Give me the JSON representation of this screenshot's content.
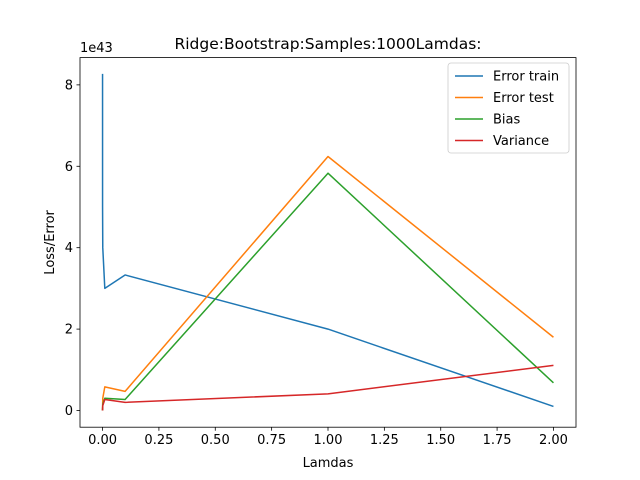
{
  "chart_data": {
    "type": "line",
    "title": "Ridge:Bootstrap:Samples:1000Lamdas:",
    "xlabel": "Lamdas",
    "ylabel": "Loss/Error",
    "y_offset_text": "1e43",
    "y_scale": 1e+43,
    "xlim": [
      -0.1,
      2.1
    ],
    "ylim": [
      -0.41,
      8.67
    ],
    "x_ticks": [
      0.0,
      0.25,
      0.5,
      0.75,
      1.0,
      1.25,
      1.5,
      1.75,
      2.0
    ],
    "x_tick_labels": [
      "0.00",
      "0.25",
      "0.50",
      "0.75",
      "1.00",
      "1.25",
      "1.50",
      "1.75",
      "2.00"
    ],
    "y_ticks": [
      0,
      2,
      4,
      6,
      8
    ],
    "y_tick_labels": [
      "0",
      "2",
      "4",
      "6",
      "8"
    ],
    "grid": false,
    "legend_position": "top-right",
    "x": [
      0.0,
      0.0001,
      0.001,
      0.01,
      0.1,
      1.0,
      2.0
    ],
    "series": [
      {
        "name": "Error train",
        "color": "#1f77b4",
        "values": [
          8.27,
          5.0,
          4.0,
          3.0,
          3.33,
          2.0,
          0.1
        ]
      },
      {
        "name": "Error test",
        "color": "#ff7f0e",
        "values": [
          0.0,
          0.05,
          0.3,
          0.58,
          0.47,
          6.24,
          1.8
        ]
      },
      {
        "name": "Bias",
        "color": "#2ca02c",
        "values": [
          0.0,
          0.03,
          0.15,
          0.3,
          0.27,
          5.83,
          0.68
        ]
      },
      {
        "name": "Variance",
        "color": "#d62728",
        "values": [
          0.0,
          0.02,
          0.12,
          0.27,
          0.2,
          0.41,
          1.11
        ]
      }
    ]
  }
}
